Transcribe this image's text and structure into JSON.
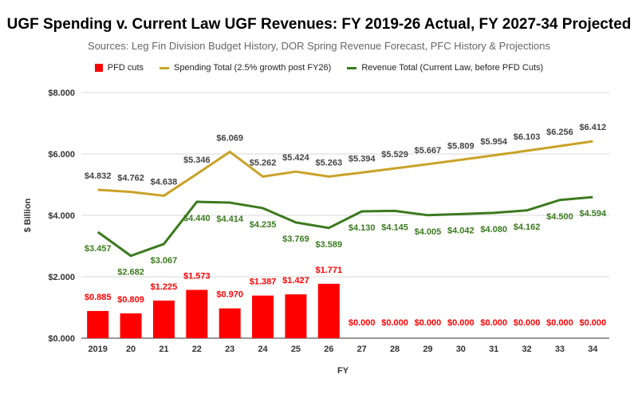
{
  "chart_data": {
    "type": "bar",
    "title": "UGF Spending v. Current Law UGF Revenues: FY 2019-26 Actual, FY 2027-34 Projected",
    "subtitle": "Sources: Leg Fin Division Budget History, DOR Spring Revenue Forecast, PFC History & Projections",
    "xlabel": "FY",
    "ylabel": "$ Billion",
    "ylim": [
      0,
      8
    ],
    "yticks": [
      0,
      2,
      4,
      6,
      8
    ],
    "ytick_labels": [
      "$0.000",
      "$2.000",
      "$4.000",
      "$6.000",
      "$8.000"
    ],
    "grid": true,
    "legend_position": "top",
    "categories": [
      "2019",
      "20",
      "21",
      "22",
      "23",
      "24",
      "25",
      "26",
      "27",
      "28",
      "29",
      "30",
      "31",
      "32",
      "33",
      "34"
    ],
    "series": [
      {
        "name": "PFD cuts",
        "kind": "bar",
        "color": "#ff0000",
        "values": [
          0.885,
          0.809,
          1.225,
          1.573,
          0.97,
          1.387,
          1.427,
          1.771,
          0.0,
          0.0,
          0.0,
          0.0,
          0.0,
          0.0,
          0.0,
          0.0
        ],
        "labels": [
          "$0.885",
          "$0.809",
          "$1.225",
          "$1.573",
          "$0.970",
          "$1.387",
          "$1.427",
          "$1.771",
          "$0.000",
          "$0.000",
          "$0.000",
          "$0.000",
          "$0.000",
          "$0.000",
          "$0.000",
          "$0.000"
        ]
      },
      {
        "name": "Spending Total (2.5% growth post FY26)",
        "kind": "line",
        "color": "#c9a227",
        "values": [
          4.832,
          4.762,
          4.638,
          5.346,
          6.069,
          5.262,
          5.424,
          5.263,
          5.394,
          5.529,
          5.667,
          5.809,
          5.954,
          6.103,
          6.256,
          6.412
        ],
        "labels": [
          "$4.832",
          "$4.762",
          "$4.638",
          "$5.346",
          "$6.069",
          "$5.262",
          "$5.424",
          "$5.263",
          "$5.394",
          "$5.529",
          "$5.667",
          "$5.809",
          "$5.954",
          "$6.103",
          "$6.256",
          "$6.412"
        ]
      },
      {
        "name": "Revenue Total (Current Law, before PFD Cuts)",
        "kind": "line",
        "color": "#3b7a1e",
        "values": [
          3.457,
          2.682,
          3.067,
          4.44,
          4.414,
          4.235,
          3.769,
          3.589,
          4.13,
          4.145,
          4.005,
          4.042,
          4.08,
          4.162,
          4.5,
          4.594
        ],
        "labels": [
          "$3.457",
          "$2.682",
          "$3.067",
          "$4.440",
          "$4.414",
          "$4.235",
          "$3.769",
          "$3.589",
          "$4.130",
          "$4.145",
          "$4.005",
          "$4.042",
          "$4.080",
          "$4.162",
          "$4.500",
          "$4.594"
        ]
      }
    ]
  }
}
